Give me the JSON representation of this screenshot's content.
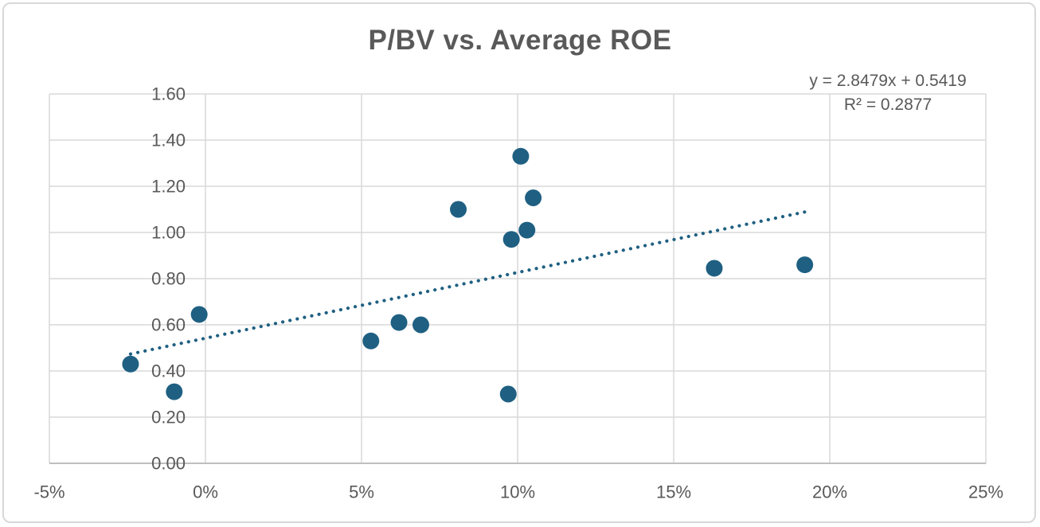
{
  "window": {
    "background": "#FFFFFF",
    "border_color": "#D8D8D8"
  },
  "chart_data": {
    "type": "scatter",
    "title": "P/BV vs. Average ROE",
    "xlabel": "",
    "ylabel": "",
    "grid": true,
    "legend": "none",
    "x_axis": {
      "range": [
        -0.05,
        0.25
      ],
      "tick_values": [
        -0.05,
        0.0,
        0.05,
        0.1,
        0.15,
        0.2,
        0.25
      ],
      "tick_labels": [
        "-5%",
        "0%",
        "5%",
        "10%",
        "15%",
        "20%",
        "25%"
      ]
    },
    "y_axis": {
      "range": [
        0,
        1.6
      ],
      "tick_values": [
        0.0,
        0.2,
        0.4,
        0.6,
        0.8,
        1.0,
        1.2,
        1.4,
        1.6
      ],
      "tick_labels": [
        "0.00",
        "0.20",
        "0.40",
        "0.60",
        "0.80",
        "1.00",
        "1.20",
        "1.40",
        "1.60"
      ]
    },
    "series": [
      {
        "marker_color": "#1F6082",
        "marker_radius": 10.5,
        "points": [
          {
            "x": -0.024,
            "y": 0.43
          },
          {
            "x": -0.01,
            "y": 0.31
          },
          {
            "x": -0.002,
            "y": 0.645
          },
          {
            "x": 0.053,
            "y": 0.53
          },
          {
            "x": 0.062,
            "y": 0.61
          },
          {
            "x": 0.069,
            "y": 0.6
          },
          {
            "x": 0.081,
            "y": 1.1
          },
          {
            "x": 0.097,
            "y": 0.3
          },
          {
            "x": 0.098,
            "y": 0.97
          },
          {
            "x": 0.101,
            "y": 1.33
          },
          {
            "x": 0.103,
            "y": 1.01
          },
          {
            "x": 0.105,
            "y": 1.15
          },
          {
            "x": 0.163,
            "y": 0.845
          },
          {
            "x": 0.192,
            "y": 0.86
          }
        ]
      }
    ],
    "trendline": {
      "equation_label": "y = 2.8479x + 0.5419",
      "r_squared_label": "R² = 0.2877",
      "slope": 2.8479,
      "intercept": 0.5419,
      "x_start": -0.024,
      "x_end": 0.1935,
      "style": "dotted",
      "color": "#1F6082"
    },
    "colors": {
      "text": "#595959",
      "gridline": "#D9D9D9",
      "axis_line": "#BFBFBF"
    }
  }
}
